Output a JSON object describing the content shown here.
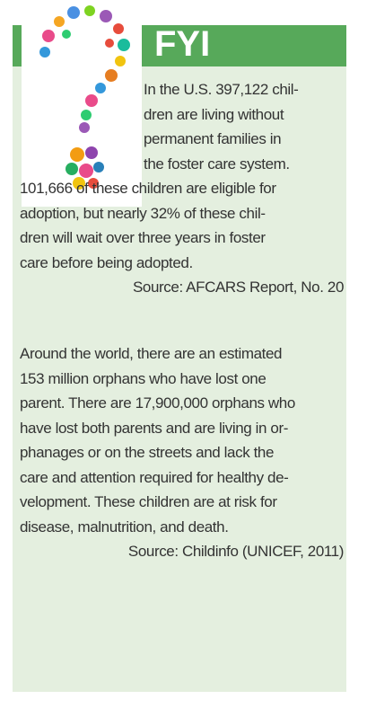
{
  "header": {
    "title": "FYI"
  },
  "paragraphs": [
    {
      "lines": [
        "In the U.S. 397,122 chil-",
        "dren are living without",
        "permanent families in",
        "the foster care system.",
        "101,666 of these children are eligible for",
        "adoption, but nearly 32% of these chil-",
        "dren will wait over three years in foster",
        "care before being adopted."
      ],
      "source": "Source: AFCARS Report, No. 20"
    },
    {
      "lines": [
        "Around the world, there are an estimated",
        "153 million orphans who have lost one",
        "parent. There are 17,900,000 orphans who",
        "have lost both parents and are living in or-",
        "phanages or on the streets and lack the",
        "care and attention required for healthy de-",
        "velopment. These children are at risk for",
        "disease, malnutrition, and death."
      ],
      "source": "Source: Childinfo (UNICEF, 2011)"
    }
  ]
}
